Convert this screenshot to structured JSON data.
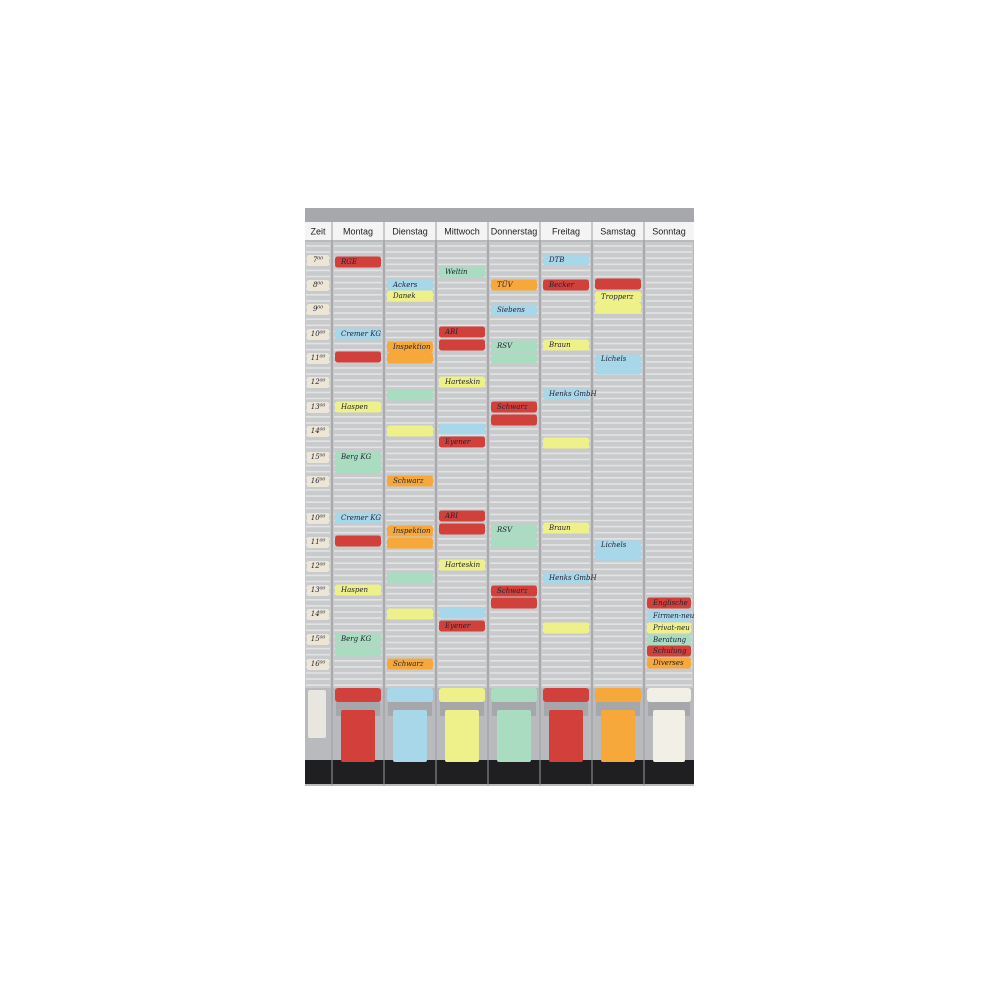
{
  "board": {
    "columns": [
      "Zeit",
      "Montag",
      "Dienstag",
      "Mittwoch",
      "Donnerstag",
      "Freitag",
      "Samstag",
      "Sonntag"
    ],
    "times": [
      "7⁰⁰",
      "8⁰⁰",
      "9⁰⁰",
      "10⁰⁰",
      "11⁰⁰",
      "12⁰⁰",
      "13⁰⁰",
      "14⁰⁰",
      "15⁰⁰",
      "16⁰⁰",
      "10⁰⁰",
      "11⁰⁰",
      "12⁰⁰",
      "13⁰⁰",
      "14⁰⁰",
      "15⁰⁰",
      "16⁰⁰"
    ],
    "cards": [
      "RGE",
      "Cremer KG",
      "Haspen",
      "Berg KG",
      "Cremer KG",
      "Haspen",
      "Berg KG",
      "Ackers",
      "Danek",
      "Inspektion",
      "Schwarz",
      "Inspektion",
      "Schwarz",
      "Weltin",
      "ABI",
      "Harteskin",
      "Eyener",
      "ABI",
      "Harteskin",
      "Eyener",
      "TÜV",
      "Siebens",
      "RSV",
      "Schwarz",
      "RSV",
      "Schwarz",
      "DTB",
      "Becker",
      "Braun",
      "Henks GmbH",
      "Braun",
      "Henks GmbH",
      "Tropperz",
      "Lichels",
      "Lichels",
      "Englische",
      "Firmen-neu",
      "Privat-neu",
      "Beratung",
      "Schulung",
      "Diverses"
    ]
  }
}
